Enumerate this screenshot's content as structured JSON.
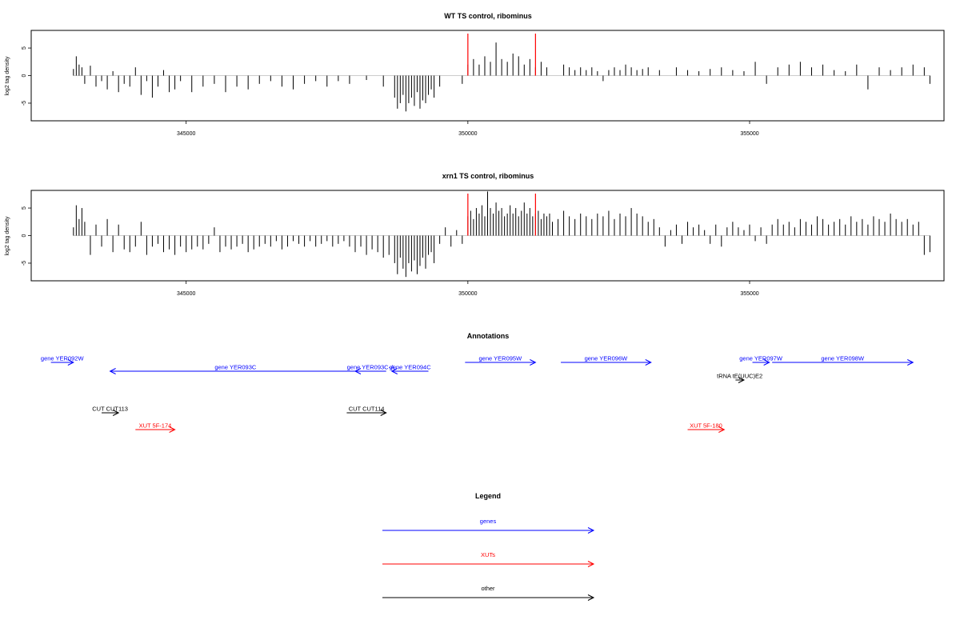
{
  "chart_data": [
    {
      "type": "bar",
      "title": "WT TS control, ribominus",
      "ylabel": "log2 tag density",
      "xlim": [
        342250,
        358450
      ],
      "ylim": [
        -8.2,
        8.2
      ],
      "yticks": [
        -5,
        0,
        5
      ],
      "xticks": [
        345000,
        350000,
        355000
      ],
      "xticklabels": [
        "345000",
        "350000",
        "355000"
      ],
      "markers": [
        350000,
        351200
      ],
      "marker_color": "#ff0000",
      "bar_color": "#000000",
      "x": [
        343000,
        343050,
        343100,
        343150,
        343200,
        343300,
        343400,
        343500,
        343600,
        343700,
        343800,
        343900,
        344000,
        344100,
        344200,
        344300,
        344400,
        344500,
        344600,
        344700,
        344800,
        344900,
        345100,
        345300,
        345500,
        345700,
        345900,
        346100,
        346300,
        346500,
        346700,
        346900,
        347100,
        347300,
        347500,
        347700,
        347900,
        348200,
        348500,
        348700,
        348750,
        348800,
        348850,
        348900,
        348950,
        349000,
        349050,
        349100,
        349150,
        349200,
        349250,
        349300,
        349350,
        349400,
        349500,
        349900,
        350000,
        350100,
        350200,
        350300,
        350400,
        350500,
        350600,
        350700,
        350800,
        350900,
        351000,
        351100,
        351200,
        351300,
        351400,
        351700,
        351800,
        351900,
        352000,
        352100,
        352200,
        352300,
        352400,
        352500,
        352600,
        352700,
        352800,
        352900,
        353000,
        353100,
        353200,
        353400,
        353700,
        353900,
        354100,
        354300,
        354500,
        354700,
        354900,
        355100,
        355300,
        355500,
        355700,
        355900,
        356100,
        356300,
        356500,
        356700,
        356900,
        357100,
        357300,
        357500,
        357700,
        357900,
        358100,
        358200
      ],
      "values": [
        1.2,
        3.5,
        2.0,
        1.5,
        -1.5,
        1.8,
        -2.0,
        -1.0,
        -2.5,
        0.8,
        -3.0,
        -1.5,
        -2.0,
        1.5,
        -3.5,
        -1.0,
        -4.0,
        -2.0,
        1.0,
        -3.0,
        -2.5,
        -1.0,
        -3.0,
        -2.0,
        -1.5,
        -3.0,
        -2.0,
        -2.5,
        -1.5,
        -1.0,
        -2.0,
        -2.5,
        -1.5,
        -1.0,
        -2.0,
        -1.0,
        -1.5,
        -0.8,
        -2.0,
        -4.0,
        -6.0,
        -5.0,
        -3.5,
        -6.5,
        -5.0,
        -4.0,
        -5.5,
        -3.0,
        -6.0,
        -4.5,
        -5.0,
        -3.5,
        -2.5,
        -4.0,
        -2.0,
        -1.5,
        2.0,
        3.0,
        2.0,
        3.5,
        2.5,
        6.0,
        3.0,
        2.5,
        4.0,
        3.5,
        2.0,
        3.0,
        1.5,
        2.5,
        1.5,
        2.0,
        1.5,
        1.0,
        1.5,
        1.0,
        1.5,
        0.8,
        -1.0,
        1.0,
        1.5,
        1.0,
        2.0,
        1.5,
        1.0,
        1.2,
        1.5,
        1.0,
        1.5,
        1.0,
        0.8,
        1.2,
        1.5,
        1.0,
        0.8,
        2.5,
        -1.5,
        1.5,
        2.0,
        2.5,
        1.5,
        2.0,
        1.0,
        0.8,
        2.0,
        -2.5,
        1.5,
        1.0,
        1.5,
        2.0,
        1.5,
        -1.5
      ]
    },
    {
      "type": "bar",
      "title": "xrn1 TS control, ribominus",
      "ylabel": "log2 tag density",
      "xlim": [
        342250,
        358450
      ],
      "ylim": [
        -8.2,
        8.2
      ],
      "yticks": [
        -5,
        0,
        5
      ],
      "xticks": [
        345000,
        350000,
        355000
      ],
      "xticklabels": [
        "345000",
        "350000",
        "355000"
      ],
      "markers": [
        350000,
        351200
      ],
      "marker_color": "#ff0000",
      "bar_color": "#000000",
      "x": [
        343000,
        343050,
        343100,
        343150,
        343200,
        343300,
        343400,
        343500,
        343600,
        343700,
        343800,
        343900,
        344000,
        344100,
        344200,
        344300,
        344400,
        344500,
        344600,
        344700,
        344800,
        344900,
        345000,
        345100,
        345200,
        345300,
        345400,
        345500,
        345600,
        345700,
        345800,
        345900,
        346000,
        346100,
        346200,
        346300,
        346400,
        346500,
        346600,
        346700,
        346800,
        346900,
        347000,
        347100,
        347200,
        347300,
        347400,
        347500,
        347600,
        347700,
        347800,
        347900,
        348000,
        348100,
        348200,
        348300,
        348400,
        348500,
        348600,
        348700,
        348750,
        348800,
        348850,
        348900,
        348950,
        349000,
        349050,
        349100,
        349150,
        349200,
        349250,
        349300,
        349350,
        349400,
        349500,
        349600,
        349700,
        349800,
        349900,
        350000,
        350050,
        350100,
        350150,
        350200,
        350250,
        350300,
        350350,
        350400,
        350450,
        350500,
        350550,
        350600,
        350650,
        350700,
        350750,
        350800,
        350850,
        350900,
        350950,
        351000,
        351050,
        351100,
        351150,
        351200,
        351250,
        351300,
        351350,
        351400,
        351450,
        351500,
        351600,
        351700,
        351800,
        351900,
        352000,
        352100,
        352200,
        352300,
        352400,
        352500,
        352600,
        352700,
        352800,
        352900,
        353000,
        353100,
        353200,
        353300,
        353400,
        353500,
        353600,
        353700,
        353800,
        353900,
        354000,
        354100,
        354200,
        354300,
        354400,
        354500,
        354600,
        354700,
        354800,
        354900,
        355000,
        355100,
        355200,
        355300,
        355400,
        355500,
        355600,
        355700,
        355800,
        355900,
        356000,
        356100,
        356200,
        356300,
        356400,
        356500,
        356600,
        356700,
        356800,
        356900,
        357000,
        357100,
        357200,
        357300,
        357400,
        357500,
        357600,
        357700,
        357800,
        357900,
        358000,
        358100,
        358200
      ],
      "values": [
        1.5,
        5.5,
        3.0,
        5.0,
        2.5,
        -3.5,
        2.0,
        -2.0,
        3.0,
        -3.0,
        2.0,
        -2.5,
        -3.0,
        -2.0,
        2.5,
        -3.5,
        -2.0,
        -1.5,
        -3.0,
        -2.5,
        -3.5,
        -2.0,
        -3.0,
        -2.5,
        -2.0,
        -2.5,
        -1.5,
        1.5,
        -3.0,
        -2.0,
        -2.5,
        -2.0,
        -1.5,
        -3.0,
        -2.5,
        -2.0,
        -1.5,
        -2.0,
        -1.0,
        -2.5,
        -2.0,
        -1.0,
        -1.5,
        -2.0,
        -1.0,
        -2.0,
        -1.5,
        -1.0,
        -2.0,
        -1.5,
        -1.0,
        -2.0,
        -3.0,
        -2.0,
        -3.5,
        -2.5,
        -3.0,
        -4.0,
        -3.5,
        -5.0,
        -7.0,
        -4.0,
        -6.0,
        -7.5,
        -5.0,
        -6.5,
        -4.5,
        -7.0,
        -5.5,
        -4.0,
        -6.0,
        -3.5,
        -3.0,
        -5.0,
        -1.5,
        1.5,
        -2.0,
        1.0,
        -1.5,
        3.5,
        4.5,
        3.0,
        5.0,
        4.0,
        5.5,
        3.5,
        8.0,
        5.0,
        4.0,
        6.0,
        4.5,
        5.0,
        3.5,
        4.0,
        5.5,
        4.0,
        5.0,
        3.5,
        4.5,
        6.0,
        4.0,
        5.0,
        3.5,
        4.0,
        4.5,
        3.0,
        4.0,
        3.5,
        4.0,
        2.5,
        3.0,
        4.5,
        3.5,
        3.0,
        4.0,
        3.5,
        3.0,
        4.0,
        3.5,
        4.5,
        3.0,
        4.0,
        3.5,
        5.0,
        4.0,
        3.5,
        2.5,
        3.0,
        1.5,
        -2.0,
        1.0,
        2.0,
        -1.5,
        2.5,
        1.5,
        2.0,
        1.0,
        -1.5,
        2.0,
        -2.0,
        1.5,
        2.5,
        1.5,
        1.0,
        2.0,
        -1.0,
        1.5,
        -1.5,
        2.0,
        3.0,
        2.0,
        2.5,
        1.5,
        3.0,
        2.5,
        2.0,
        3.5,
        3.0,
        2.0,
        2.5,
        3.0,
        2.0,
        3.5,
        2.5,
        3.0,
        2.0,
        3.5,
        3.0,
        2.5,
        4.0,
        3.0,
        2.5,
        3.0,
        2.0,
        2.5,
        -3.5,
        -3.0
      ]
    }
  ],
  "annotations": {
    "title": "Annotations",
    "xlim": [
      342250,
      358450
    ],
    "items": [
      {
        "label": "gene YER092W",
        "start": 342600,
        "end": 343000,
        "dir": "+",
        "color": "#0000ff",
        "row": 0
      },
      {
        "label": "gene YER093C",
        "start": 343650,
        "end": 348100,
        "dir": "-",
        "color": "#0000ff",
        "row": 1
      },
      {
        "label": "gene YER093C-A",
        "start": 348000,
        "end": 348550,
        "dir": "-",
        "color": "#0000ff",
        "row": 1
      },
      {
        "label": "gene YER094C",
        "start": 348650,
        "end": 349300,
        "dir": "-",
        "color": "#0000ff",
        "row": 1
      },
      {
        "label": "gene YER095W",
        "start": 349950,
        "end": 351200,
        "dir": "+",
        "color": "#0000ff",
        "row": 0
      },
      {
        "label": "gene YER096W",
        "start": 351650,
        "end": 353250,
        "dir": "+",
        "color": "#0000ff",
        "row": 0
      },
      {
        "label": "gene YER097W",
        "start": 355050,
        "end": 355350,
        "dir": "+",
        "color": "#0000ff",
        "row": 0
      },
      {
        "label": "gene YER098W",
        "start": 355400,
        "end": 357900,
        "dir": "+",
        "color": "#0000ff",
        "row": 0
      },
      {
        "label": "tRNA tE(UUC)E2",
        "start": 354750,
        "end": 354900,
        "dir": "+",
        "color": "#000000",
        "row": 2
      },
      {
        "label": "CUT CUT113",
        "start": 343500,
        "end": 343800,
        "dir": "+",
        "color": "#000000",
        "row": 3
      },
      {
        "label": "CUT CUT114",
        "start": 347850,
        "end": 348550,
        "dir": "+",
        "color": "#000000",
        "row": 3
      },
      {
        "label": "XUT 5F-174",
        "start": 344100,
        "end": 344800,
        "dir": "+",
        "color": "#ff0000",
        "row": 4
      },
      {
        "label": "XUT 5F-180",
        "start": 353900,
        "end": 354550,
        "dir": "+",
        "color": "#ff0000",
        "row": 4
      }
    ]
  },
  "legend": {
    "title": "Legend",
    "items": [
      {
        "label": "genes",
        "color": "#0000ff"
      },
      {
        "label": "XUTs",
        "color": "#ff0000"
      },
      {
        "label": "other",
        "color": "#000000"
      }
    ]
  }
}
